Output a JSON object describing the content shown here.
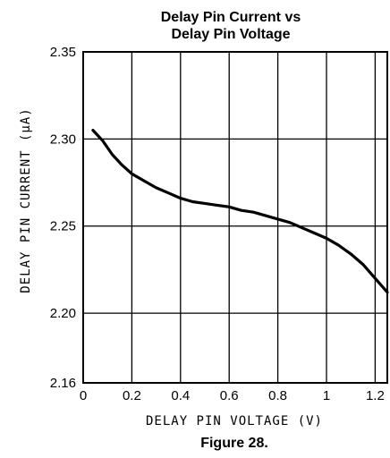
{
  "chart_data": {
    "type": "line",
    "title_lines": [
      "Delay Pin Current vs",
      "Delay Pin Voltage"
    ],
    "xlabel": "DELAY PIN VOLTAGE (V)",
    "ylabel": "DELAY PIN CURRENT (μA)",
    "caption": "Figure 28.",
    "xlim": [
      0,
      1.25
    ],
    "ylim": [
      2.16,
      2.35
    ],
    "x_ticks": [
      {
        "value": 0,
        "label": "0"
      },
      {
        "value": 0.2,
        "label": "0.2"
      },
      {
        "value": 0.4,
        "label": "0.4"
      },
      {
        "value": 0.6,
        "label": "0.6"
      },
      {
        "value": 0.8,
        "label": "0.8"
      },
      {
        "value": 1.0,
        "label": "1"
      },
      {
        "value": 1.2,
        "label": "1.2"
      }
    ],
    "y_ticks": [
      {
        "value": 2.16,
        "label": "2.16"
      },
      {
        "value": 2.2,
        "label": "2.20"
      },
      {
        "value": 2.25,
        "label": "2.25"
      },
      {
        "value": 2.3,
        "label": "2.30"
      },
      {
        "value": 2.35,
        "label": "2.35"
      }
    ],
    "grid": true,
    "series_color": "#000000",
    "series": [
      {
        "x": [
          0.04,
          0.08,
          0.12,
          0.16,
          0.2,
          0.25,
          0.3,
          0.35,
          0.4,
          0.45,
          0.5,
          0.55,
          0.6,
          0.65,
          0.7,
          0.75,
          0.8,
          0.85,
          0.9,
          0.95,
          1.0,
          1.05,
          1.1,
          1.15,
          1.2,
          1.25
        ],
        "y": [
          2.305,
          2.299,
          2.291,
          2.285,
          2.28,
          2.276,
          2.272,
          2.269,
          2.266,
          2.264,
          2.263,
          2.262,
          2.261,
          2.259,
          2.258,
          2.256,
          2.254,
          2.252,
          2.249,
          2.246,
          2.243,
          2.239,
          2.234,
          2.228,
          2.22,
          2.212
        ]
      }
    ]
  }
}
